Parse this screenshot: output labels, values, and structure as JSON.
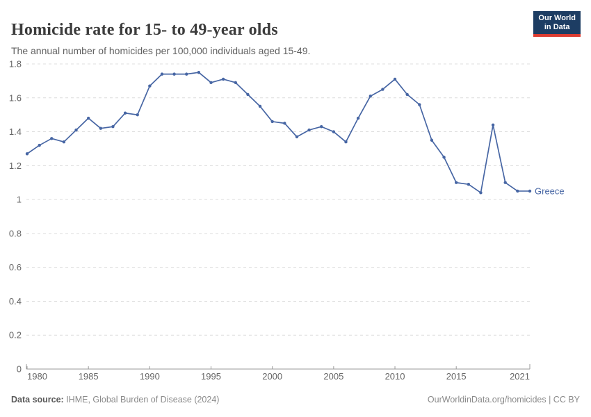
{
  "header": {
    "title": "Homicide rate for 15- to 49-year olds",
    "subtitle": "The annual number of homicides per 100,000 individuals aged 15-49.",
    "logo": {
      "line1": "Our World",
      "line2": "in Data"
    }
  },
  "chart_data": {
    "type": "line",
    "title": "Homicide rate for 15- to 49-year olds",
    "xlim": [
      1980,
      2021
    ],
    "ylim": [
      0,
      1.8
    ],
    "grid": "horizontal-dashed",
    "legend_position": "end-of-line-label",
    "x": [
      1980,
      1981,
      1982,
      1983,
      1984,
      1985,
      1986,
      1987,
      1988,
      1989,
      1990,
      1991,
      1992,
      1993,
      1994,
      1995,
      1996,
      1997,
      1998,
      1999,
      2000,
      2001,
      2002,
      2003,
      2004,
      2005,
      2006,
      2007,
      2008,
      2009,
      2010,
      2011,
      2012,
      2013,
      2014,
      2015,
      2016,
      2017,
      2018,
      2019,
      2020,
      2021
    ],
    "series": [
      {
        "name": "Greece",
        "values": [
          1.27,
          1.32,
          1.36,
          1.34,
          1.41,
          1.48,
          1.42,
          1.43,
          1.51,
          1.5,
          1.67,
          1.74,
          1.74,
          1.74,
          1.75,
          1.69,
          1.71,
          1.69,
          1.62,
          1.55,
          1.46,
          1.45,
          1.37,
          1.41,
          1.43,
          1.4,
          1.34,
          1.48,
          1.61,
          1.65,
          1.71,
          1.62,
          1.56,
          1.35,
          1.25,
          1.1,
          1.09,
          1.04,
          1.44,
          1.1,
          1.05,
          1.05
        ]
      }
    ],
    "x_ticks": [
      {
        "value": 1980,
        "label": "1980",
        "align": "start"
      },
      {
        "value": 1985,
        "label": "1985",
        "align": "middle"
      },
      {
        "value": 1990,
        "label": "1990",
        "align": "middle"
      },
      {
        "value": 1995,
        "label": "1995",
        "align": "middle"
      },
      {
        "value": 2000,
        "label": "2000",
        "align": "middle"
      },
      {
        "value": 2005,
        "label": "2005",
        "align": "middle"
      },
      {
        "value": 2010,
        "label": "2010",
        "align": "middle"
      },
      {
        "value": 2015,
        "label": "2015",
        "align": "middle"
      },
      {
        "value": 2021,
        "label": "2021",
        "align": "end"
      }
    ],
    "y_ticks": [
      {
        "value": 0,
        "label": "0"
      },
      {
        "value": 0.2,
        "label": "0.2"
      },
      {
        "value": 0.4,
        "label": "0.4"
      },
      {
        "value": 0.6,
        "label": "0.6"
      },
      {
        "value": 0.8,
        "label": "0.8"
      },
      {
        "value": 1,
        "label": "1"
      },
      {
        "value": 1.2,
        "label": "1.2"
      },
      {
        "value": 1.4,
        "label": "1.4"
      },
      {
        "value": 1.6,
        "label": "1.6"
      },
      {
        "value": 1.8,
        "label": "1.8"
      }
    ]
  },
  "footer": {
    "source_label": "Data source:",
    "source_text": " IHME, Global Burden of Disease (2024)",
    "credit": "OurWorldinData.org/homicides | CC BY"
  },
  "colors": {
    "line": "#4766a4",
    "grid": "#dcdcdc",
    "axis": "#9a9a9a",
    "tick_text": "#666666",
    "title_text": "#3c3c3c",
    "subtitle_text": "#616161",
    "footer_text": "#8a8a8a",
    "logo_bg": "#1d3d63",
    "logo_accent": "#dc3c31"
  }
}
